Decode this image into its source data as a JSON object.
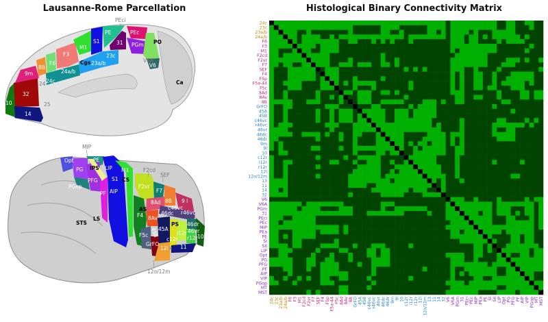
{
  "left_title": "Lausanne-Rome Parcellation",
  "right_title": "Histological Binary Connectivity Matrix",
  "medial_view_labels": [
    "PEci",
    "PE",
    "PEc",
    "S1",
    "31",
    "PGm",
    "PO",
    "M1",
    "F3",
    "F6",
    "8B",
    "23c",
    "Cgs",
    "23a/b",
    "24a/b",
    "9m",
    "24c",
    "24",
    "V6A",
    "V6",
    "Ca",
    "32",
    "10",
    "25",
    "14"
  ],
  "lateral_view_labels": [
    "MIP",
    "Opt",
    "PE",
    "PG",
    "LIP",
    "M1",
    "IPS",
    "PFG",
    "S1",
    "CS",
    "F2cd",
    "SEF",
    "PGop",
    "AIP",
    "F2vr",
    "F7",
    "PF",
    "8Ad",
    "8B",
    "9 l",
    "AS",
    "c46vc",
    "F4",
    "46dc",
    "r46vc",
    "8Av",
    "PS",
    "STS",
    "LS",
    "46dr",
    "45A",
    "46vr",
    "F5c",
    "45B",
    "i12r",
    "r12r",
    "10",
    "c12r",
    "GrFO",
    "12l",
    "11",
    "12o/12m"
  ],
  "colors": {
    "connected": "#00b000",
    "not_connected": "#004400",
    "diagonal": "#000000"
  },
  "chart_data": {
    "type": "heatmap",
    "title": "Histological Binary Connectivity Matrix",
    "values": "binary (1 = connection, 0 = none, X = diagonal)",
    "symmetric": true,
    "label_groups": [
      {
        "color": "#c8860a",
        "labels": [
          "24c",
          "23c",
          "23a/b",
          "24a/b"
        ]
      },
      {
        "color": "#c8207a",
        "labels": [
          "F6",
          "F3",
          "M1",
          "F2cd",
          "F2vr",
          "F7",
          "SEF",
          "F4",
          "F5p",
          "F5a-44",
          "F5c",
          "8Ad",
          "8Av",
          "8B"
        ]
      },
      {
        "color": "#2a84c8",
        "labels": [
          "GrFO",
          "45A",
          "45B",
          "c46vc",
          "r46vc",
          "46vr",
          "46dc",
          "46dr",
          "9m",
          "9l",
          "10",
          "c12r",
          "i12r",
          "r12r",
          "12l",
          "12o/12m",
          "13",
          "11",
          "14",
          "32"
        ]
      },
      {
        "color": "#8a28c8",
        "labels": [
          "V6",
          "V6A",
          "PGm",
          "31",
          "PEci",
          "PEc",
          "MIP",
          "PEa",
          "PE",
          "SI",
          "SII",
          "LIP",
          "Opt",
          "PG",
          "PFG",
          "PF",
          "AIP",
          "VIP",
          "PGop",
          "MT",
          "MST"
        ]
      }
    ],
    "rows": [
      "X 1111 1111 1111 1111 1111 1111 1111 | 111111111 0 1111111111 00 11 00 11 00",
      "1X 1111 1111 1111 1111 000000 1111 0 | 00000 1111 0 1111111111 00 11 000 1 00",
      "11X111001 0000 0000 1 000000 11001 | 00000 11 0 1 0 1111 0 1 000 11111 000000",
      "111X11011110010 1111 1111 1111 11 | 0 11111111 0 111 0 11 0 1 0 111111 0 1 000",
      "1111X10 1111 1111 00110001010100 | 01 00000000 111 0 11 0000 1 0 1111 0000",
      "11111X1111 0 1111 00000 00000 0000 | 00000 00000 1111111111 0000000 1 00",
      "11000 1X11 00 1111 00000 00000 0000 | 00000 00000 1 0 11111111 000000 1 000",
      "1101111X 11111 00000 00000 0 1 0000 | 00000 00000 0 1111111 00000 00000 00",
      "11111111X 1111 0000 1 000000 1 00 1 0 | 00000 00000 11111111 0000 111 0 1 00 1",
      "110110011X1110011101110011010 | 00000 00000 11111111 000 111 000000",
      "1000111111X0111 00000 00000 0000 | 10101 00000 111 00 1 0000 1 00000000 1",
      "10001111110X111 00000 00000 0000 | 00000 00000 1 0 1 00 11 00 1 000 11111 00",
      "100011111101X11 000 1 00000 1 0000 | 00000 00000 1 0 1 00 11 00 1 00 111111 00",
      "1001111000011X1 01011111000000 | 0 1 00000000 1 0 1 00 11 00 1 0 11111 0 1 00",
      "10001110000111X 00010001000000 | 0 1 00000000 1 0 1 00 11 0 11 000 111 0000",
      "100100000010000X 1101110011010 | 00000 00000 111 0000000 1 0000 11 0 11",
      "1001000000100101X 001110000000 | 1 00000 00000 11 00 11 000 1 0000 11 0 11",
      "11111000111000010X 01110011111 | 0000 111 0 1 00 11 00000000 11 0000000",
      "100110000000111000X 0001100000 | 0 1 0 1111 00000 00000 00 1 00000 00000",
      "1001000000100101110X 111110011 | 1 0 11111 00000 00000 00000 0 1 000000",
      "10010000001001011101X 11110011 | 1 0 11111 00000 00000 00000 00000 000",
      "100100000010010111011X 1110011 | 111111 000000 1 0000000 11 0000 1 0 1 0",
      "1011100000001110001111X 111111 | 111111 0 1 0000 1 000000 111 1111 0 1 00",
      "11110000000001000011111X 11111 | 11111111 0000 1 000000 1 00 11 000000",
      "111110011110100100110001X 1111 | 00000 1111 0 111 000000 11111 000000",
      "1100000000100001001000011X 111 | 0000 11111 0 1 0 1 0000000 1111 000000",
      "101 00000 00000 00000 1 0000 111 X 11 | 0 1 0 11 0 111 0 1 0 1 00000 00000 00000 00",
      "101000000 11 0000 1 00 111111111 X1 | 00 1 0 11111 00 11 00000 00000 00000 00",
      "0011 00000 00000 0000 1 0000 11 0 11 X | 00 1111111 00 11 00000 00000 00000 00",
      "X 111111 0000 1 00000 00000 00000 000",
      "1X 11111 0000 1 0000000 1 00000 1 0000",
      "11X 11111 000 1 00000 00000 00000 000",
      "111X 1111 000 1 00000 00000 00000 000",
      "1111X 1111 00 1 00000 00000 0 11 00000",
      "11111X 1 0 1 000 1 00000 00000 00000 00",
      "111111X 0 1 00000 00000 00000 00000 0",
      "10111 00 X 1 00000 00000 00000 00000 0",
      "0000 1111 X 00000 00000 00000 00000 0",
      "000000000 X 111 00 1 0000 1 00000 1 0 11",
      "000000000 1 X 11111111 0 11111111 0 1",
      "11111 0000 11 X 1111111 0 111 000 11 0 1",
      "00000 1 000 111 X 111 0 11 0 111 0 1 0 11 0 1",
      "000000000 1111 X 11111 000 11 000 1 0 1",
      "00000 00000 1111 X 1111 000 111111 0 1",
      "000000000 111111 X 111111111111 0 1",
      "00000 00000 11 0 111 X 1111 0 111111 00",
      "00000 00000 1111111 X 1 0000 11 0 11 00",
      "00000 00000 00 111111 X 1 000 11 0 11 00",
      "0 1 00000 00000 000 11 0 1 X 00 1111111 0",
      "00000 00000 00000 11 0 1 0 X 111111011",
      "000000000 1111 00 11 000 1 X 1 00 11 0 11",
      "00000 00000 111 00 1 0000 11 X 1111111",
      "00000 00000 11111111 0 1111 X 111111",
      "0000 1 00000 1 00 1111111 00 11 X 11111",
      "00000 00000 1 0 1 0 111111 00 111 X 1100",
      "0 1 00000000 1 0000 11 00 1111111 X 1 00",
      "000000000 1111 0 1111111111111 X 11",
      "00000 00000 1111111111 00 111111 X 1",
      "000000000 1111111 0000 1111 0 1111 X"
    ]
  }
}
